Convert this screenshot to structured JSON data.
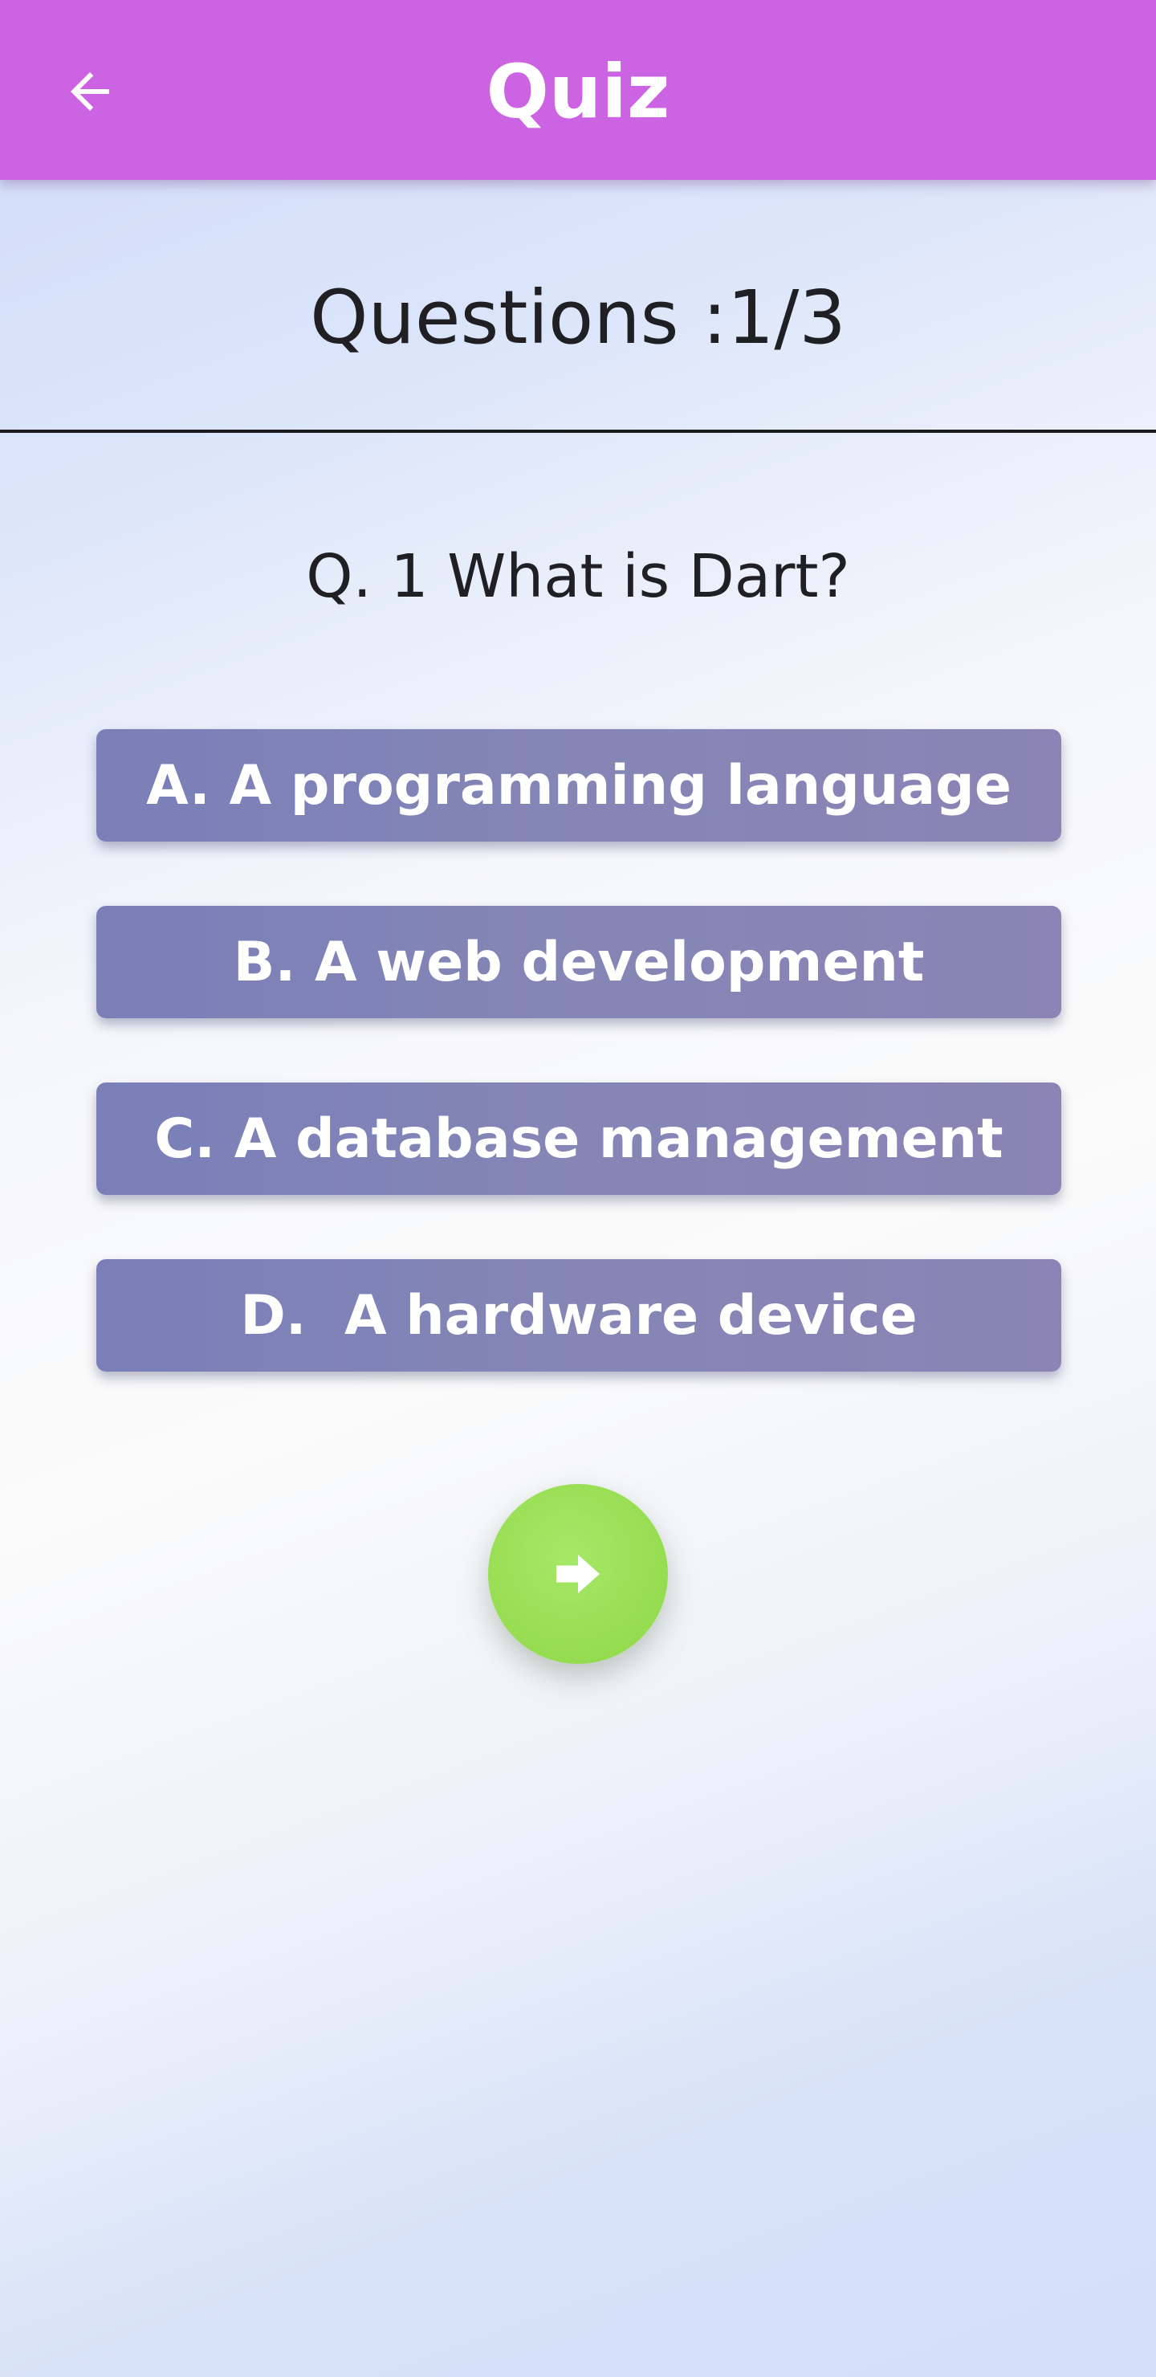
{
  "app_bar": {
    "title": "Quiz",
    "back_icon": "arrow-back-icon",
    "background_color": "#cc63e2"
  },
  "progress": {
    "label": "Questions :1/3",
    "current": 1,
    "total": 3
  },
  "question": {
    "text": "Q. 1 What is Dart?"
  },
  "options": [
    {
      "label": "A. A programming language"
    },
    {
      "label": "B. A web development"
    },
    {
      "label": "C. A database management"
    },
    {
      "label": "D.  A hardware device"
    }
  ],
  "next_button": {
    "icon": "arrow-forward-icon",
    "color": "#96dc50"
  },
  "colors": {
    "option_button": "#8586b6",
    "text_dark": "#1f1f24"
  }
}
